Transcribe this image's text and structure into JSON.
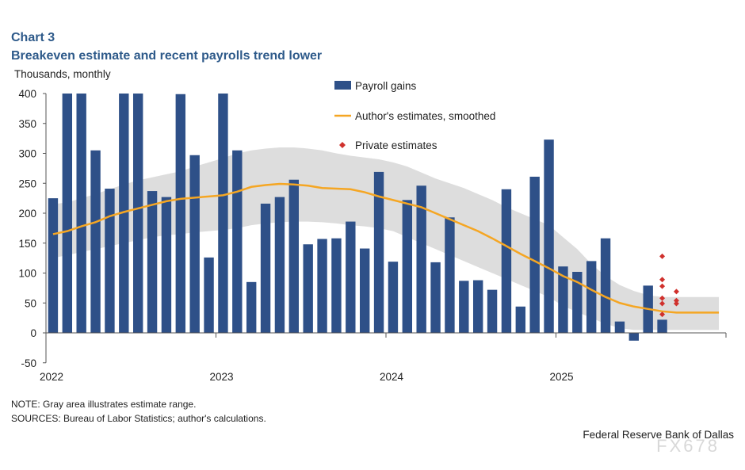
{
  "header": {
    "chart_number": "Chart 3",
    "title": "Breakeven estimate and recent payrolls trend lower"
  },
  "footer": {
    "note": "NOTE: Gray area illustrates estimate range.",
    "sources": "SOURCES: Bureau of Labor Statistics; author's calculations.",
    "credit": "Federal Reserve Bank of Dallas",
    "watermark": "FX678"
  },
  "chart_data": {
    "type": "bar",
    "ylabel": "Thousands,  monthly",
    "ylim": [
      -50,
      400
    ],
    "yticks": [
      "400",
      "350",
      "300",
      "250",
      "200",
      "150",
      "100",
      "50",
      "0",
      "-50"
    ],
    "xticks": [
      "2022",
      "2023",
      "2024",
      "2025"
    ],
    "xlim": [
      "2022-01",
      "2025-12"
    ],
    "grid": false,
    "legend_position": "top-center",
    "colors": {
      "bars": "#2e5088",
      "line": "#f5a623",
      "band": "#d9d9d9",
      "dots": "#d0312d"
    },
    "months": [
      "2022-01",
      "2022-02",
      "2022-03",
      "2022-04",
      "2022-05",
      "2022-06",
      "2022-07",
      "2022-08",
      "2022-09",
      "2022-10",
      "2022-11",
      "2022-12",
      "2023-01",
      "2023-02",
      "2023-03",
      "2023-04",
      "2023-05",
      "2023-06",
      "2023-07",
      "2023-08",
      "2023-09",
      "2023-10",
      "2023-11",
      "2023-12",
      "2024-01",
      "2024-02",
      "2024-03",
      "2024-04",
      "2024-05",
      "2024-06",
      "2024-07",
      "2024-08",
      "2024-09",
      "2024-10",
      "2024-11",
      "2024-12",
      "2025-01",
      "2025-02",
      "2025-03",
      "2025-04",
      "2025-05",
      "2025-06",
      "2025-07",
      "2025-08",
      "2025-09",
      "2025-10",
      "2025-11",
      "2025-12"
    ],
    "series": [
      {
        "name": "Payroll gains",
        "type": "bar",
        "values": [
          225,
          400,
          400,
          305,
          241,
          400,
          400,
          237,
          227,
          399,
          297,
          126,
          400,
          305,
          85,
          216,
          227,
          256,
          148,
          157,
          158,
          186,
          141,
          269,
          119,
          222,
          246,
          118,
          193,
          87,
          88,
          72,
          240,
          44,
          261,
          323,
          111,
          102,
          120,
          158,
          19,
          -13,
          79,
          22
        ]
      },
      {
        "name": "Author's estimates, smoothed",
        "type": "line",
        "values": [
          165,
          170,
          178,
          185,
          195,
          202,
          208,
          214,
          220,
          224,
          226,
          228,
          230,
          236,
          244,
          247,
          249,
          248,
          246,
          242,
          241,
          240,
          235,
          228,
          222,
          216,
          210,
          200,
          190,
          180,
          170,
          158,
          145,
          132,
          120,
          108,
          95,
          85,
          72,
          60,
          50,
          44,
          40,
          36,
          34,
          34,
          34,
          34
        ]
      },
      {
        "name": "Estimate range",
        "type": "area",
        "upper": [
          215,
          218,
          225,
          232,
          240,
          248,
          255,
          260,
          265,
          270,
          278,
          285,
          292,
          300,
          305,
          308,
          310,
          310,
          308,
          305,
          300,
          296,
          293,
          290,
          285,
          278,
          268,
          258,
          250,
          242,
          232,
          222,
          210,
          200,
          190,
          180,
          160,
          140,
          115,
          95,
          80,
          70,
          63,
          60,
          60,
          60,
          60,
          60
        ],
        "lower": [
          125,
          130,
          135,
          140,
          145,
          150,
          155,
          160,
          163,
          165,
          168,
          170,
          172,
          175,
          180,
          183,
          185,
          186,
          186,
          185,
          183,
          180,
          178,
          175,
          170,
          160,
          150,
          140,
          130,
          120,
          110,
          100,
          90,
          80,
          70,
          60,
          45,
          35,
          25,
          15,
          8,
          5,
          5,
          5,
          5,
          5,
          5,
          5
        ]
      },
      {
        "name": "Private estimates",
        "type": "scatter",
        "points": [
          {
            "month": "2025-08",
            "value": 128
          },
          {
            "month": "2025-08",
            "value": 89
          },
          {
            "month": "2025-08",
            "value": 78
          },
          {
            "month": "2025-08",
            "value": 58
          },
          {
            "month": "2025-08",
            "value": 49
          },
          {
            "month": "2025-08",
            "value": 31
          },
          {
            "month": "2025-09",
            "value": 69
          },
          {
            "month": "2025-09",
            "value": 54
          },
          {
            "month": "2025-09",
            "value": 49
          }
        ]
      }
    ]
  }
}
